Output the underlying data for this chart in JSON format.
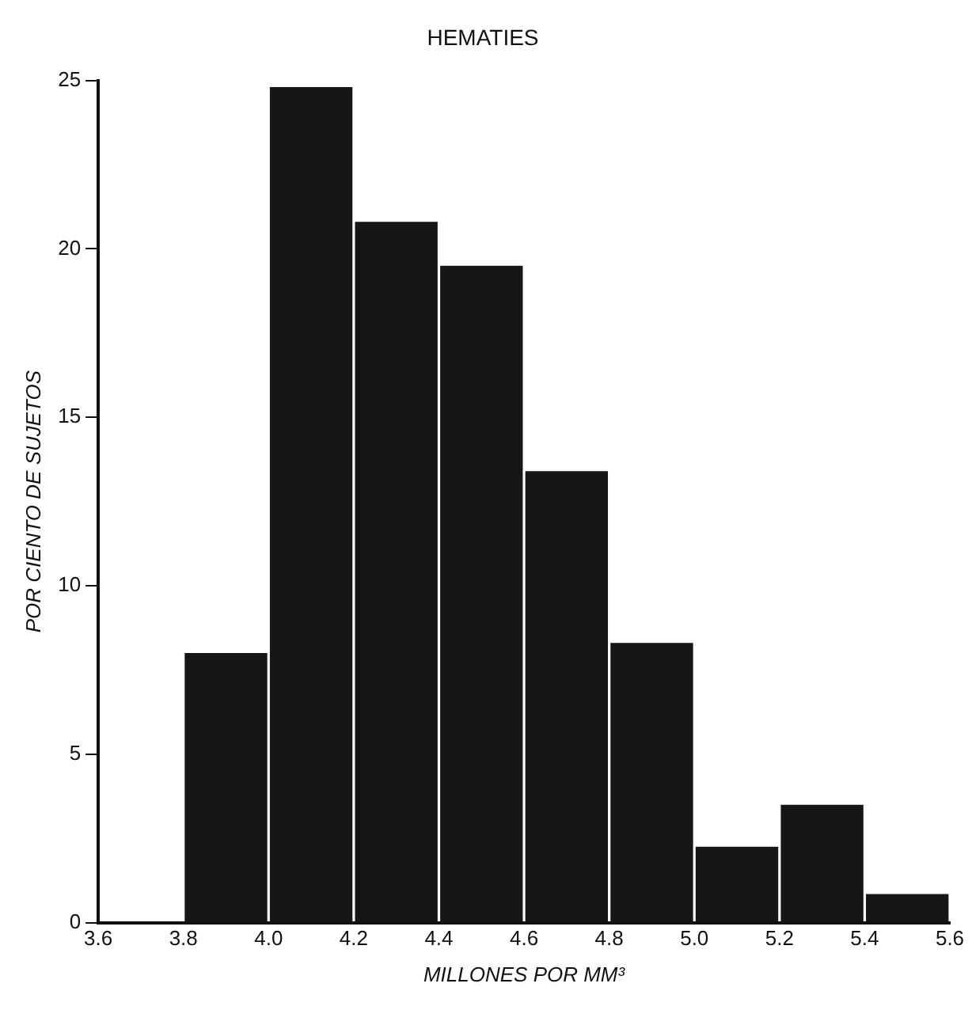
{
  "chart_data": {
    "type": "histogram",
    "title": "HEMATIES",
    "xlabel": "MILLONES POR MM³",
    "ylabel": "POR CIENTO DE SUJETOS",
    "bins": [
      3.6,
      3.8,
      4.0,
      4.2,
      4.4,
      4.6,
      4.8,
      5.0,
      5.2,
      5.4,
      5.6
    ],
    "values": [
      0,
      8.0,
      24.8,
      20.8,
      19.5,
      13.4,
      8.3,
      2.25,
      3.5,
      0.85
    ],
    "color": "#161616",
    "xlim": [
      3.6,
      5.6
    ],
    "xticks": [
      3.6,
      3.8,
      {
        "value": 4.0,
        "label": "4.0"
      },
      4.2,
      4.4,
      4.6,
      4.8,
      {
        "value": 5.0,
        "label": "5.0"
      },
      5.2,
      5.4,
      5.6
    ],
    "ylim": [
      0,
      25
    ],
    "yticks": [
      0,
      5,
      10,
      15,
      20,
      25
    ],
    "grid": false,
    "legend": false
  }
}
